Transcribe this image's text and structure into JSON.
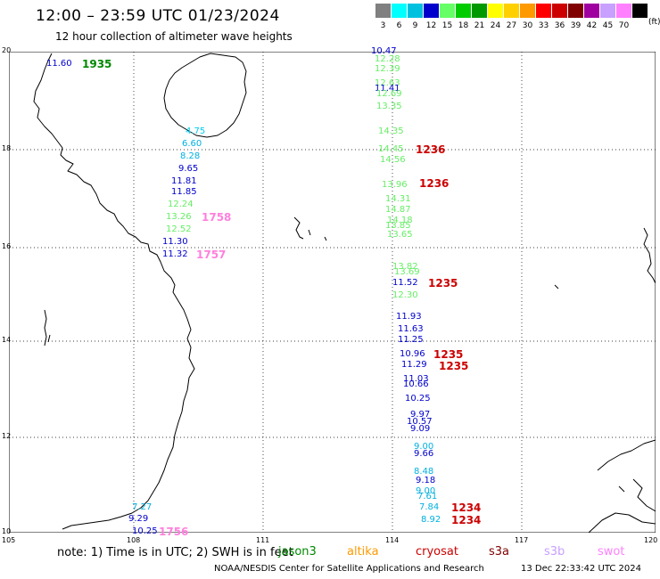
{
  "header": {
    "title": "12:00 – 23:59 UTC 01/23/2024",
    "subtitle": "12 hour collection of altimeter wave heights"
  },
  "legend": {
    "units": "(ft)",
    "levels": [
      {
        "label": "3",
        "color": "#808080"
      },
      {
        "label": "6",
        "color": "#00ffff"
      },
      {
        "label": "9",
        "color": "#00c0e0"
      },
      {
        "label": "12",
        "color": "#0000cc"
      },
      {
        "label": "15",
        "color": "#66ff66"
      },
      {
        "label": "18",
        "color": "#00cc00"
      },
      {
        "label": "21",
        "color": "#009900"
      },
      {
        "label": "24",
        "color": "#ffff00"
      },
      {
        "label": "27",
        "color": "#ffd000"
      },
      {
        "label": "30",
        "color": "#ff9900"
      },
      {
        "label": "33",
        "color": "#ff0000"
      },
      {
        "label": "36",
        "color": "#cc0000"
      },
      {
        "label": "39",
        "color": "#800000"
      },
      {
        "label": "42",
        "color": "#a000a0"
      },
      {
        "label": "45",
        "color": "#c8a0ff"
      },
      {
        "label": "70",
        "color": "#ff80ff"
      },
      {
        "label": "",
        "color": "#000000"
      }
    ]
  },
  "axes": {
    "x_ticks": [
      "105",
      "108",
      "111",
      "114",
      "117",
      "120"
    ],
    "y_ticks": [
      "20",
      "18",
      "16",
      "14",
      "12",
      "10"
    ]
  },
  "observations": [
    {
      "value": "10.47",
      "color": "#0000cc"
    },
    {
      "value": "12.28",
      "color": "#66ee66"
    },
    {
      "value": "12.39",
      "color": "#66ee66"
    },
    {
      "value": "12.63",
      "color": "#66ee66"
    },
    {
      "value": "11.41",
      "color": "#0000cc"
    },
    {
      "value": "12.69",
      "color": "#66ee66"
    },
    {
      "value": "13.35",
      "color": "#66ee66"
    },
    {
      "value": "14.35",
      "color": "#66ee66"
    },
    {
      "value": "14.45",
      "color": "#66ee66"
    },
    {
      "value": "14.56",
      "color": "#66ee66"
    },
    {
      "value": "13.96",
      "color": "#66ee66"
    },
    {
      "value": "14.31",
      "color": "#66ee66"
    },
    {
      "value": "14.87",
      "color": "#66ee66"
    },
    {
      "value": "14.18",
      "color": "#66ee66"
    },
    {
      "value": "13.85",
      "color": "#66ee66"
    },
    {
      "value": "13.65",
      "color": "#66ee66"
    },
    {
      "value": "13.82",
      "color": "#66ee66"
    },
    {
      "value": "13.69",
      "color": "#66ee66"
    },
    {
      "value": "11.52",
      "color": "#0000cc"
    },
    {
      "value": "12.30",
      "color": "#66ee66"
    },
    {
      "value": "11.93",
      "color": "#0000cc"
    },
    {
      "value": "11.63",
      "color": "#0000cc"
    },
    {
      "value": "11.25",
      "color": "#0000cc"
    },
    {
      "value": "10.96",
      "color": "#0000cc"
    },
    {
      "value": "11.29",
      "color": "#0000cc"
    },
    {
      "value": "11.03",
      "color": "#0000cc"
    },
    {
      "value": "10.66",
      "color": "#0000cc"
    },
    {
      "value": "10.25",
      "color": "#0000cc"
    },
    {
      "value": "9.97",
      "color": "#0000cc"
    },
    {
      "value": "10.57",
      "color": "#0000cc"
    },
    {
      "value": "9.09",
      "color": "#0000cc"
    },
    {
      "value": "9.00",
      "color": "#00b0e0"
    },
    {
      "value": "9.66",
      "color": "#0000cc"
    },
    {
      "value": "8.48",
      "color": "#00b0e0"
    },
    {
      "value": "9.18",
      "color": "#0000cc"
    },
    {
      "value": "9.00",
      "color": "#00b0e0"
    },
    {
      "value": "7.61",
      "color": "#00b0e0"
    },
    {
      "value": "7.84",
      "color": "#00b0e0"
    },
    {
      "value": "8.92",
      "color": "#00b0e0"
    },
    {
      "value": "11.60",
      "color": "#0000cc"
    },
    {
      "value": "4.75",
      "color": "#00ccee"
    },
    {
      "value": "6.60",
      "color": "#00b0e0"
    },
    {
      "value": "8.28",
      "color": "#00b0e0"
    },
    {
      "value": "9.65",
      "color": "#0000cc"
    },
    {
      "value": "11.81",
      "color": "#0000cc"
    },
    {
      "value": "11.85",
      "color": "#0000cc"
    },
    {
      "value": "12.24",
      "color": "#66ee66"
    },
    {
      "value": "13.26",
      "color": "#66ee66"
    },
    {
      "value": "12.52",
      "color": "#66ee66"
    },
    {
      "value": "11.30",
      "color": "#0000cc"
    },
    {
      "value": "11.32",
      "color": "#0000cc"
    },
    {
      "value": "7.27",
      "color": "#00b0e0"
    },
    {
      "value": "9.29",
      "color": "#0000cc"
    },
    {
      "value": "10.25",
      "color": "#0000cc"
    }
  ],
  "pass_times": [
    {
      "value": "1935",
      "color": "#008800"
    },
    {
      "value": "1236",
      "color": "#cc0000"
    },
    {
      "value": "1236",
      "color": "#cc0000"
    },
    {
      "value": "1758",
      "color": "#ff80dd"
    },
    {
      "value": "1757",
      "color": "#ff80dd"
    },
    {
      "value": "1235",
      "color": "#cc0000"
    },
    {
      "value": "1235",
      "color": "#cc0000"
    },
    {
      "value": "1235",
      "color": "#cc0000"
    },
    {
      "value": "1234",
      "color": "#cc0000"
    },
    {
      "value": "1234",
      "color": "#cc0000"
    },
    {
      "value": "1756",
      "color": "#ff80dd"
    }
  ],
  "footer": {
    "note": "note: 1) Time is in UTC; 2) SWH is in feet",
    "satellites": [
      {
        "name": "jason3",
        "color": "#008800"
      },
      {
        "name": "altika",
        "color": "#ff9900"
      },
      {
        "name": "cryosat",
        "color": "#cc0000"
      },
      {
        "name": "s3a",
        "color": "#800000"
      },
      {
        "name": "s3b",
        "color": "#c8a0ff"
      },
      {
        "name": "swot",
        "color": "#ff80ff"
      }
    ],
    "credit": "NOAA/NESDIS Center for Satellite Applications and Research",
    "timestamp": "13 Dec 22:33:42 UTC 2024"
  }
}
